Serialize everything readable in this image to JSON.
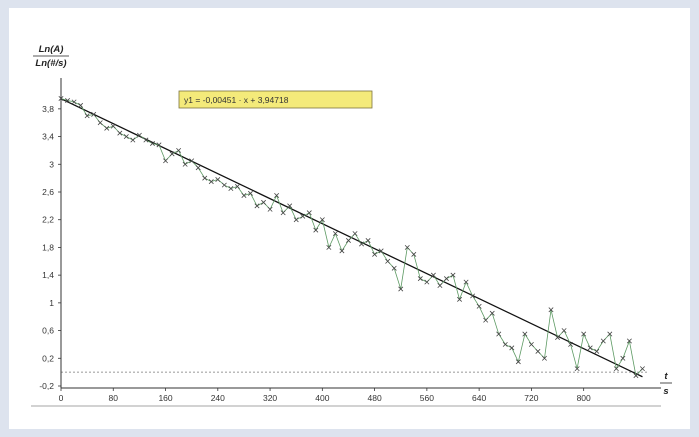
{
  "chart_data": {
    "type": "scatter",
    "ylabel_top": "Ln(A)",
    "ylabel_bottom": "Ln(#/s)",
    "xlabel_top": "t",
    "xlabel_bottom": "s",
    "equation": "y1 = -0,00451 · x + 3,94718",
    "xlim": [
      0,
      900
    ],
    "ylim": [
      -0.2,
      4.0
    ],
    "xticks": [
      0,
      80,
      160,
      240,
      320,
      400,
      480,
      560,
      640,
      720,
      800
    ],
    "xtick_labels": [
      "0",
      "80",
      "160",
      "240",
      "320",
      "400",
      "480",
      "560",
      "640",
      "720",
      "800"
    ],
    "yticks": [
      3.8,
      3.4,
      3,
      2.6,
      2.2,
      1.8,
      1.4,
      1,
      0.6,
      0.2,
      -0.2
    ],
    "ytick_labels": [
      "3,8",
      "3,4",
      "3",
      "2,6",
      "2,2",
      "1,8",
      "1,4",
      "1",
      "0,6",
      "0,2",
      "-0,2"
    ],
    "fit": {
      "slope": -0.00451,
      "intercept": 3.94718
    },
    "baseline_y": 0,
    "series": [
      {
        "x": [
          0,
          10,
          20,
          30,
          40,
          50,
          60,
          70,
          80,
          90,
          100,
          110,
          120,
          130,
          140,
          150,
          160,
          170,
          180,
          190,
          200,
          210,
          220,
          230,
          240,
          250,
          260,
          270,
          280,
          290,
          300,
          310,
          320,
          330,
          340,
          350,
          360,
          370,
          380,
          390,
          400,
          410,
          420,
          430,
          440,
          450,
          460,
          470,
          480,
          490,
          500,
          510,
          520,
          530,
          540,
          550,
          560,
          570,
          580,
          590,
          600,
          610,
          620,
          630,
          640,
          650,
          660,
          670,
          680,
          690,
          700,
          710,
          720,
          730,
          740,
          750,
          760,
          770,
          780,
          790,
          800,
          810,
          820,
          830,
          840,
          850,
          860,
          870,
          880,
          890
        ],
        "y": [
          3.95,
          3.92,
          3.9,
          3.85,
          3.7,
          3.72,
          3.6,
          3.52,
          3.55,
          3.45,
          3.4,
          3.35,
          3.42,
          3.35,
          3.3,
          3.28,
          3.05,
          3.15,
          3.2,
          3.0,
          3.05,
          2.95,
          2.8,
          2.75,
          2.78,
          2.7,
          2.65,
          2.68,
          2.55,
          2.58,
          2.4,
          2.45,
          2.35,
          2.55,
          2.3,
          2.4,
          2.2,
          2.25,
          2.3,
          2.05,
          2.2,
          1.8,
          2.0,
          1.75,
          1.9,
          2.0,
          1.85,
          1.9,
          1.7,
          1.75,
          1.6,
          1.5,
          1.2,
          1.8,
          1.7,
          1.35,
          1.3,
          1.4,
          1.25,
          1.35,
          1.4,
          1.05,
          1.3,
          1.1,
          0.95,
          0.75,
          0.85,
          0.55,
          0.4,
          0.35,
          0.15,
          0.55,
          0.4,
          0.3,
          0.2,
          0.9,
          0.5,
          0.6,
          0.4,
          0.05,
          0.55,
          0.35,
          0.3,
          0.45,
          0.55,
          0.05,
          0.2,
          0.45,
          -0.05,
          0.05
        ]
      }
    ]
  }
}
